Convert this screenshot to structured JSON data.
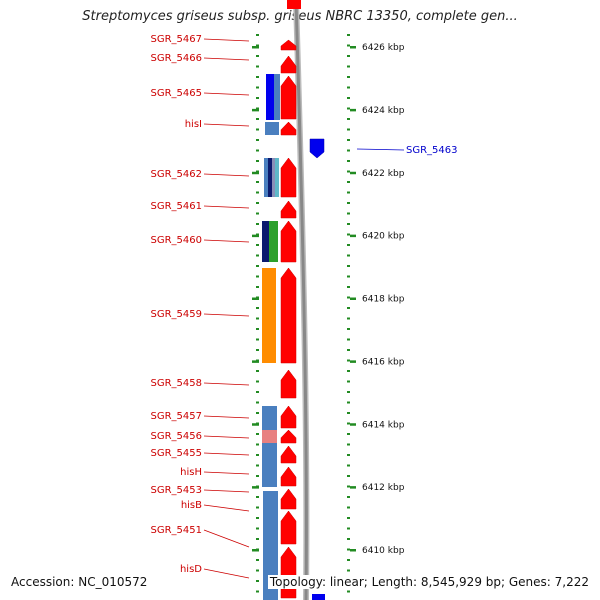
{
  "title": "Streptomyces griseus subsp. griseus NBRC 13350, complete gen...",
  "footer": {
    "accession": "Accession: NC_010572",
    "stats": "Topology: linear; Length: 8,545,929 bp; Genes: 7,222"
  },
  "colors": {
    "forward_gene": "#ff0000",
    "reverse_gene": "#0000ee",
    "forward_label": "#cc0000",
    "reverse_label": "#0000cc",
    "tick": "#228b22",
    "backbone": "#888888",
    "cog_blue": "#4a7fbf",
    "cog_darkblue": "#0b1a6e",
    "cog_orange": "#ff8c00",
    "cog_green": "#2ca02c",
    "cog_teal": "#5fb8c8",
    "cog_pink": "#e88080"
  },
  "scale": {
    "unit": "kbp",
    "ticks": [
      {
        "value": 6426,
        "label": "6426 kbp"
      },
      {
        "value": 6424,
        "label": "6424 kbp"
      },
      {
        "value": 6422,
        "label": "6422 kbp"
      },
      {
        "value": 6420,
        "label": "6420 kbp"
      },
      {
        "value": 6418,
        "label": "6418 kbp"
      },
      {
        "value": 6416,
        "label": "6416 kbp"
      },
      {
        "value": 6414,
        "label": "6414 kbp"
      },
      {
        "value": 6412,
        "label": "6412 kbp"
      },
      {
        "value": 6410,
        "label": "6410 kbp"
      }
    ]
  },
  "genes_forward": [
    {
      "label": "SGR_5467"
    },
    {
      "label": "SGR_5466"
    },
    {
      "label": "SGR_5465"
    },
    {
      "label": "hisI"
    },
    {
      "label": "SGR_5462"
    },
    {
      "label": "SGR_5461"
    },
    {
      "label": "SGR_5460"
    },
    {
      "label": "SGR_5459"
    },
    {
      "label": "SGR_5458"
    },
    {
      "label": "SGR_5457"
    },
    {
      "label": "SGR_5456"
    },
    {
      "label": "SGR_5455"
    },
    {
      "label": "hisH"
    },
    {
      "label": "SGR_5453"
    },
    {
      "label": "hisB"
    },
    {
      "label": "SGR_5451"
    },
    {
      "label": "hisD"
    }
  ],
  "genes_reverse": [
    {
      "label": "SGR_5463"
    }
  ]
}
